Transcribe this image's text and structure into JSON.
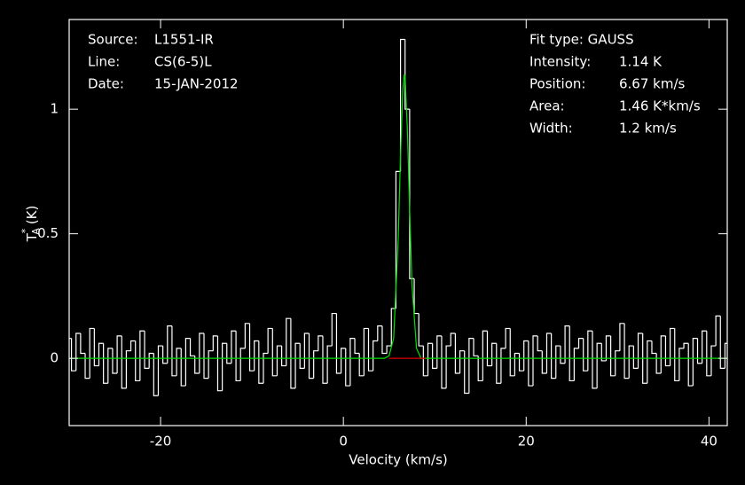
{
  "chart_data": {
    "type": "spectrum",
    "xlabel": "Velocity (km/s)",
    "ylabel": {
      "symbol": "T",
      "sup": "*",
      "sub": "A",
      "unit": "(K)"
    },
    "xlim": [
      -30,
      42
    ],
    "ylim": [
      -0.27,
      1.36
    ],
    "xticks": [
      -20,
      0,
      20,
      40
    ],
    "yticks": [
      0,
      0.5,
      1
    ],
    "header": [
      {
        "label": "Source:",
        "value": "L1551-IR"
      },
      {
        "label": "Line:",
        "value": "CS(6-5)L"
      },
      {
        "label": "Date:",
        "value": "15-JAN-2012"
      }
    ],
    "fit_info": {
      "title": "Fit type: GAUSS",
      "rows": [
        {
          "label": "Intensity:",
          "value": "1.14 K"
        },
        {
          "label": "Position:",
          "value": "6.67 km/s"
        },
        {
          "label": "Area:",
          "value": "1.46 K*km/s"
        },
        {
          "label": "Width:",
          "value": "1.2 km/s"
        }
      ]
    },
    "x": [
      -30,
      -29.5,
      -29,
      -28.5,
      -28,
      -27.5,
      -27,
      -26.5,
      -26,
      -25.5,
      -25,
      -24.5,
      -24,
      -23.5,
      -23,
      -22.5,
      -22,
      -21.5,
      -21,
      -20.5,
      -20,
      -19.5,
      -19,
      -18.5,
      -18,
      -17.5,
      -17,
      -16.5,
      -16,
      -15.5,
      -15,
      -14.5,
      -14,
      -13.5,
      -13,
      -12.5,
      -12,
      -11.5,
      -11,
      -10.5,
      -10,
      -9.5,
      -9,
      -8.5,
      -8,
      -7.5,
      -7,
      -6.5,
      -6,
      -5.5,
      -5,
      -4.5,
      -4,
      -3.5,
      -3,
      -2.5,
      -2,
      -1.5,
      -1,
      -0.5,
      0,
      0.5,
      1,
      1.5,
      2,
      2.5,
      3,
      3.5,
      4,
      4.5,
      5,
      5.5,
      6,
      6.5,
      7,
      7.5,
      8,
      8.5,
      9,
      9.5,
      10,
      10.5,
      11,
      11.5,
      12,
      12.5,
      13,
      13.5,
      14,
      14.5,
      15,
      15.5,
      16,
      16.5,
      17,
      17.5,
      18,
      18.5,
      19,
      19.5,
      20,
      20.5,
      21,
      21.5,
      22,
      22.5,
      23,
      23.5,
      24,
      24.5,
      25,
      25.5,
      26,
      26.5,
      27,
      27.5,
      28,
      28.5,
      29,
      29.5,
      30,
      30.5,
      31,
      31.5,
      32,
      32.5,
      33,
      33.5,
      34,
      34.5,
      35,
      35.5,
      36,
      36.5,
      37,
      37.5,
      38,
      38.5,
      39,
      39.5,
      40,
      40.5,
      41,
      41.5,
      42
    ],
    "series": [
      {
        "name": "spectrum",
        "color": "#ffffff",
        "style": "step",
        "values": [
          0.08,
          -0.05,
          0.1,
          0.02,
          -0.08,
          0.12,
          -0.03,
          0.06,
          -0.1,
          0.04,
          -0.06,
          0.09,
          -0.12,
          0.03,
          0.07,
          -0.09,
          0.11,
          -0.04,
          0.02,
          -0.15,
          0.05,
          -0.02,
          0.13,
          -0.07,
          0.04,
          -0.11,
          0.08,
          0.01,
          -0.06,
          0.1,
          -0.08,
          0.03,
          0.09,
          -0.13,
          0.06,
          -0.02,
          0.11,
          -0.09,
          0.04,
          0.14,
          -0.05,
          0.07,
          -0.1,
          0.02,
          0.12,
          -0.07,
          0.05,
          -0.03,
          0.16,
          -0.12,
          0.06,
          -0.04,
          0.1,
          -0.08,
          0.03,
          0.09,
          -0.1,
          0.05,
          0.18,
          -0.06,
          0.04,
          -0.11,
          0.08,
          0.02,
          -0.07,
          0.12,
          -0.05,
          0.07,
          0.13,
          0.02,
          0.05,
          0.2,
          0.75,
          1.28,
          1.0,
          0.32,
          0.18,
          0.05,
          -0.07,
          0.06,
          -0.04,
          0.09,
          -0.12,
          0.05,
          0.1,
          -0.06,
          0.03,
          -0.14,
          0.08,
          0.01,
          -0.09,
          0.11,
          -0.03,
          0.06,
          -0.1,
          0.04,
          0.12,
          -0.07,
          0.02,
          -0.05,
          0.07,
          -0.11,
          0.09,
          0.03,
          -0.06,
          0.1,
          -0.08,
          0.05,
          -0.02,
          0.13,
          -0.09,
          0.04,
          0.08,
          -0.05,
          0.11,
          -0.12,
          0.06,
          -0.01,
          0.09,
          -0.07,
          0.03,
          0.14,
          -0.08,
          0.05,
          -0.04,
          0.1,
          -0.1,
          0.07,
          0.02,
          -0.06,
          0.09,
          -0.03,
          0.12,
          -0.09,
          0.04,
          0.06,
          -0.11,
          0.08,
          -0.02,
          0.11,
          -0.07,
          0.05,
          0.17,
          -0.04,
          0.06
        ]
      },
      {
        "name": "fit",
        "color": "#00e000",
        "style": "line",
        "x": [
          -30,
          4.5,
          5,
          5.5,
          6,
          6.25,
          6.5,
          6.67,
          6.75,
          7,
          7.25,
          7.5,
          8,
          8.5,
          9,
          42
        ],
        "values": [
          0,
          0,
          0.01,
          0.08,
          0.48,
          0.81,
          1.08,
          1.14,
          1.13,
          0.92,
          0.6,
          0.3,
          0.04,
          0,
          0,
          0
        ]
      },
      {
        "name": "window",
        "color": "#e00000",
        "style": "line",
        "x": [
          5,
          9
        ],
        "values": [
          0,
          0
        ]
      }
    ]
  }
}
